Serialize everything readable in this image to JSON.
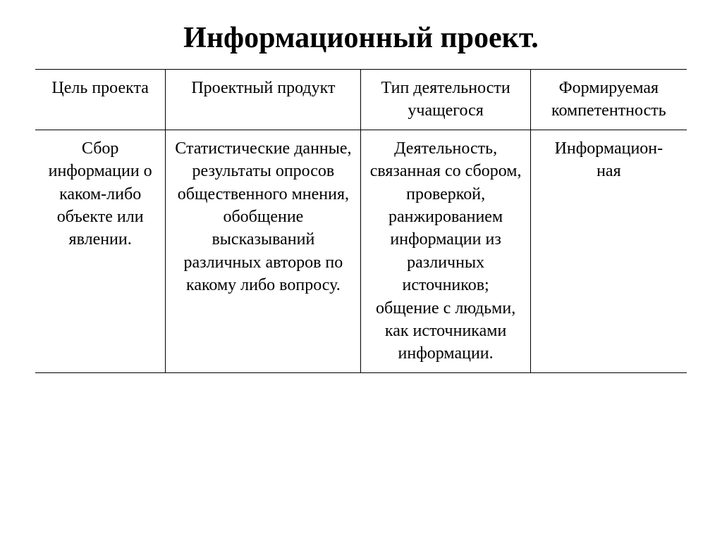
{
  "title": "Информационный проект.",
  "title_fontsize": 42,
  "table": {
    "columns": [
      {
        "label": "Цель проекта",
        "width_pct": 20
      },
      {
        "label": "Проектный продукт",
        "width_pct": 30
      },
      {
        "label": "Тип деятельности учащегося",
        "width_pct": 26
      },
      {
        "label": "Формируемая компетентность",
        "width_pct": 24
      }
    ],
    "header_fontsize": 24,
    "cell_fontsize": 24,
    "line_height": 1.35,
    "row": {
      "c1": "Сбор информации о каком-либо объекте или явлении.",
      "c2": "Статистические данные, результаты опросов общественного мнения, обобщение высказываний различных авторов по какому либо вопросу.",
      "c3": "Деятельность, связанная со сбором, проверкой, ранжированием информации из различных источников; общение с людьми, как источниками информации.",
      "c4_line1": "Информацион-",
      "c4_line2": "ная"
    }
  },
  "colors": {
    "background": "#ffffff",
    "text": "#000000",
    "border": "#000000"
  }
}
